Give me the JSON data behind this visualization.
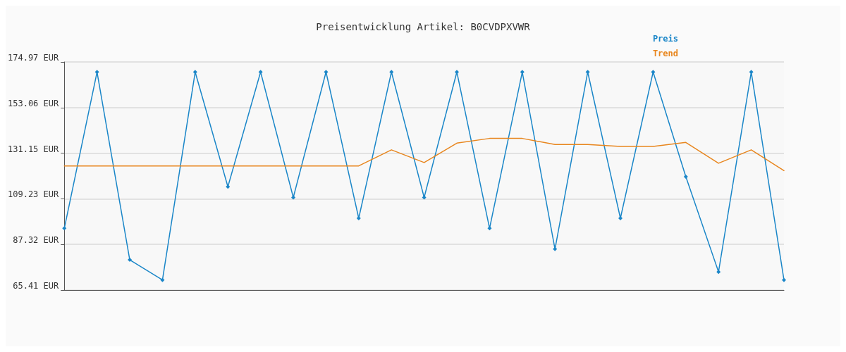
{
  "chart_data": {
    "type": "line",
    "title": "Preisentwicklung Artikel: B0CVDPXVWR",
    "categories": [
      null,
      null,
      null,
      null,
      null,
      null,
      null,
      null,
      null,
      null,
      null,
      null,
      null,
      null,
      null,
      null,
      null,
      null,
      null,
      null,
      null,
      null,
      null
    ],
    "series": [
      {
        "name": "Preis",
        "color": "#1a86c8",
        "marker": "diamond",
        "values": [
          95.06,
          170.14,
          79.92,
          70.25,
          170.14,
          115.04,
          170.14,
          109.89,
          170.14,
          99.9,
          170.14,
          109.89,
          170.14,
          95.06,
          170.14,
          85.08,
          170.14,
          99.9,
          170.14,
          119.87,
          74.12,
          170.14,
          70.25
        ]
      },
      {
        "name": "Trend",
        "color": "#e8861e",
        "marker": "none",
        "values": [
          125.03,
          125.03,
          125.03,
          125.03,
          125.03,
          125.03,
          125.03,
          125.03,
          125.03,
          125.03,
          132.76,
          126.64,
          135.98,
          138.24,
          138.24,
          135.34,
          135.34,
          134.37,
          134.37,
          136.3,
          126.32,
          132.76,
          122.77
        ]
      }
    ],
    "ylim": [
      65.41,
      174.97
    ],
    "yticks": [
      {
        "value": 65.41,
        "label": "65.41 EUR"
      },
      {
        "value": 87.32,
        "label": "87.32 EUR"
      },
      {
        "value": 109.23,
        "label": "109.23 EUR"
      },
      {
        "value": 131.15,
        "label": "131.15 EUR"
      },
      {
        "value": 153.06,
        "label": "153.06 EUR"
      },
      {
        "value": 174.97,
        "label": "174.97 EUR"
      }
    ],
    "tick_labels": "y",
    "grid": "y",
    "legend": "top right",
    "line_style": "solid"
  }
}
